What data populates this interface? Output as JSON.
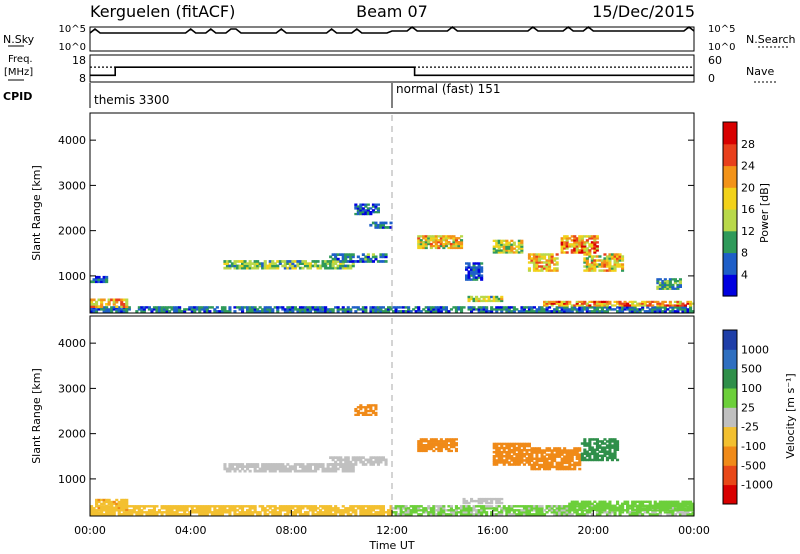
{
  "header": {
    "radar": "Kerguelen (fitACF)",
    "beam": "Beam 07",
    "date": "15/Dec/2015"
  },
  "chart_data": [
    {
      "type": "line",
      "name": "noise-panel",
      "left_label": "N.Sky",
      "right_label": "N.Search",
      "left_ticks": [
        "10^5",
        "10^0"
      ],
      "right_ticks": [
        "10^5",
        "10^0"
      ],
      "x_range_hours": [
        0,
        24
      ]
    },
    {
      "type": "line",
      "name": "frequency-panel",
      "left_label_top": "Freq.",
      "left_label_bottom": "[MHz]",
      "right_label": "Nave",
      "left_ticks": [
        "18",
        "8"
      ],
      "right_ticks": [
        "60",
        "0"
      ],
      "freq_ylim": [
        8,
        18
      ],
      "nave_ylim": [
        0,
        60
      ],
      "freq_steps": [
        {
          "x0": 0,
          "x1": 1.0,
          "y": 10.5
        },
        {
          "x0": 1.0,
          "x1": 12.9,
          "y": 13.5
        },
        {
          "x0": 12.9,
          "x1": 24,
          "y": 10.5
        }
      ],
      "nave_level": 33
    },
    {
      "type": "table",
      "name": "cpid-panel",
      "label": "CPID",
      "programs": [
        {
          "start": 0,
          "text": "themis 3300"
        },
        {
          "start": 12.0,
          "text": "normal (fast) 151"
        }
      ]
    },
    {
      "type": "heatmap",
      "name": "power-panel",
      "ylabel": "Slant Range [km]",
      "y_ticks": [
        "4000",
        "3000",
        "2000",
        "1000"
      ],
      "ylim": [
        180,
        4600
      ],
      "xlim": [
        0,
        24
      ],
      "colorbar_label": "Power [dB]",
      "colorbar_ticks": [
        "28",
        "24",
        "20",
        "16",
        "12",
        "8",
        "4"
      ],
      "colorbar_colors": [
        "#0000e0",
        "#1e5fc8",
        "#2f9a5a",
        "#b8d84a",
        "#f2d21a",
        "#f39318",
        "#e8401c",
        "#d80000"
      ],
      "regions": [
        {
          "x0": 0.0,
          "x1": 24.0,
          "r0": 200,
          "r1": 330,
          "v": 7
        },
        {
          "x0": 0.0,
          "x1": 1.5,
          "r0": 300,
          "r1": 500,
          "v": 20
        },
        {
          "x0": 0.0,
          "x1": 0.7,
          "r0": 850,
          "r1": 1000,
          "v": 6
        },
        {
          "x0": 5.3,
          "x1": 10.5,
          "r0": 1150,
          "r1": 1350,
          "v": 12
        },
        {
          "x0": 9.5,
          "x1": 11.8,
          "r0": 1300,
          "r1": 1500,
          "v": 8
        },
        {
          "x0": 10.5,
          "x1": 11.5,
          "r0": 2350,
          "r1": 2600,
          "v": 6
        },
        {
          "x0": 11.1,
          "x1": 12.0,
          "r0": 2050,
          "r1": 2200,
          "v": 8
        },
        {
          "x0": 13.0,
          "x1": 14.8,
          "r0": 1600,
          "r1": 1900,
          "v": 18
        },
        {
          "x0": 14.9,
          "x1": 15.6,
          "r0": 900,
          "r1": 1300,
          "v": 6
        },
        {
          "x0": 16.0,
          "x1": 17.2,
          "r0": 1500,
          "r1": 1800,
          "v": 16
        },
        {
          "x0": 17.4,
          "x1": 18.6,
          "r0": 1100,
          "r1": 1500,
          "v": 20
        },
        {
          "x0": 18.7,
          "x1": 20.2,
          "r0": 1500,
          "r1": 1900,
          "v": 22
        },
        {
          "x0": 19.6,
          "x1": 21.2,
          "r0": 1100,
          "r1": 1500,
          "v": 18
        },
        {
          "x0": 15.0,
          "x1": 16.4,
          "r0": 430,
          "r1": 560,
          "v": 14
        },
        {
          "x0": 18.0,
          "x1": 24.0,
          "r0": 330,
          "r1": 450,
          "v": 22
        },
        {
          "x0": 22.5,
          "x1": 23.5,
          "r0": 700,
          "r1": 950,
          "v": 10
        }
      ]
    },
    {
      "type": "heatmap",
      "name": "velocity-panel",
      "ylabel": "Slant Range [km]",
      "y_ticks": [
        "4000",
        "3000",
        "2000",
        "1000"
      ],
      "ylim": [
        180,
        4600
      ],
      "xlim": [
        0,
        24
      ],
      "x_ticks": [
        "00:00",
        "04:00",
        "08:00",
        "12:00",
        "16:00",
        "20:00",
        "00:00"
      ],
      "xlabel": "Time UT",
      "colorbar_label": "Velocity [m s⁻¹]",
      "colorbar_ticks": [
        "1000",
        "500",
        "100",
        "25",
        "-25",
        "-100",
        "-500",
        "-1000"
      ],
      "colorbar_colors": [
        "#1f3fa8",
        "#2f6fc0",
        "#2f8f4a",
        "#6ccf3a",
        "#c0c0c0",
        "#f3c030",
        "#f08a18",
        "#e84818",
        "#d80000"
      ],
      "regions": [
        {
          "x0": 0.0,
          "x1": 12.0,
          "r0": 200,
          "r1": 420,
          "v": -40
        },
        {
          "x0": 0.2,
          "x1": 1.5,
          "r0": 300,
          "r1": 560,
          "v": -80
        },
        {
          "x0": 5.3,
          "x1": 10.5,
          "r0": 1150,
          "r1": 1350,
          "v": 0
        },
        {
          "x0": 9.5,
          "x1": 11.8,
          "r0": 1300,
          "r1": 1500,
          "v": 0
        },
        {
          "x0": 10.5,
          "x1": 11.4,
          "r0": 2400,
          "r1": 2650,
          "v": -150
        },
        {
          "x0": 13.0,
          "x1": 14.6,
          "r0": 1600,
          "r1": 1900,
          "v": -200
        },
        {
          "x0": 16.0,
          "x1": 17.5,
          "r0": 1300,
          "r1": 1800,
          "v": -300
        },
        {
          "x0": 17.5,
          "x1": 19.5,
          "r0": 1200,
          "r1": 1700,
          "v": -200
        },
        {
          "x0": 19.5,
          "x1": 21.0,
          "r0": 1400,
          "r1": 1900,
          "v": 200
        },
        {
          "x0": 14.8,
          "x1": 16.4,
          "r0": 450,
          "r1": 580,
          "v": 0
        },
        {
          "x0": 12.0,
          "x1": 24.0,
          "r0": 200,
          "r1": 420,
          "v": 30
        },
        {
          "x0": 19.0,
          "x1": 24.0,
          "r0": 300,
          "r1": 520,
          "v": 60
        }
      ]
    }
  ]
}
